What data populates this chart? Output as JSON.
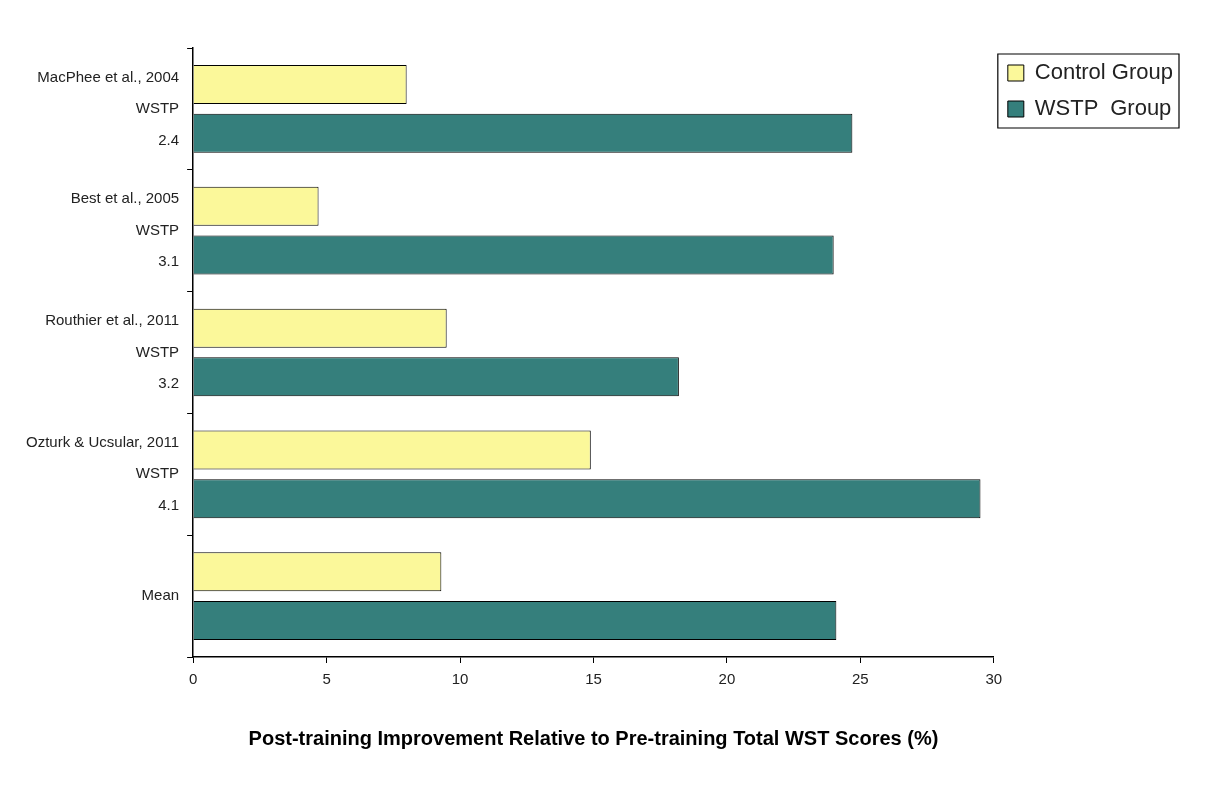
{
  "chart_data": {
    "type": "bar",
    "orientation": "horizontal",
    "xlabel": "Post-training Improvement Relative to Pre-training Total WST Scores (%)",
    "categories": [
      "MacPhee et al., 2004\nWSTP\n2.4",
      "Best et al., 2005\nWSTP\n3.1",
      "Routhier et al., 2011\nWSTP\n3.2",
      "Ozturk & Ucsular, 2011\nWSTP\n4.1",
      "Mean"
    ],
    "series": [
      {
        "name": "Control Group",
        "color": "#fbf89a",
        "values": [
          8.0,
          4.7,
          9.5,
          14.9,
          9.3
        ]
      },
      {
        "name": "WSTP  Group",
        "color": "#357f7c",
        "values": [
          24.7,
          24.0,
          18.2,
          29.5,
          24.1
        ]
      }
    ],
    "xlim": [
      0,
      30
    ],
    "xticks": [
      0,
      5,
      10,
      15,
      20,
      25,
      30
    ],
    "grid": false,
    "legend": "top right"
  }
}
